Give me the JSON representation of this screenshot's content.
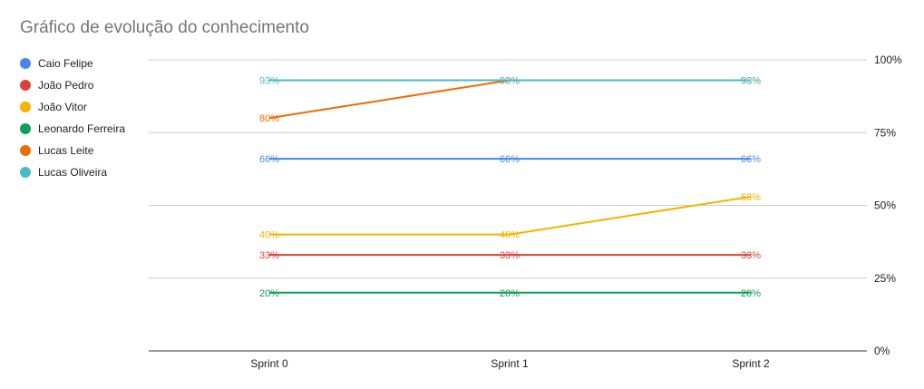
{
  "chart_data": {
    "type": "line",
    "title": "Gráfico de evolução do conhecimento",
    "categories": [
      "Sprint 0",
      "Sprint 1",
      "Sprint 2"
    ],
    "ylim": [
      0,
      100
    ],
    "yticks": [
      0,
      25,
      50,
      75,
      100
    ],
    "ytick_labels": [
      "0%",
      "25%",
      "50%",
      "75%",
      "100%"
    ],
    "y_axis_side": "right",
    "grid": true,
    "legend_position": "left",
    "series": [
      {
        "name": "Caio Felipe",
        "color": "#4a86e8",
        "values": [
          66,
          66,
          66
        ],
        "labels": [
          "66%",
          "66%",
          "66%"
        ]
      },
      {
        "name": "João Pedro",
        "color": "#db4437",
        "values": [
          33,
          33,
          33
        ],
        "labels": [
          "33%",
          "33%",
          "33%"
        ]
      },
      {
        "name": "João Vitor",
        "color": "#f4b400",
        "values": [
          40,
          40,
          53
        ],
        "labels": [
          "40%",
          "40%",
          "53%"
        ]
      },
      {
        "name": "Leonardo Ferreira",
        "color": "#0f9d58",
        "values": [
          20,
          20,
          20
        ],
        "labels": [
          "20%",
          "20%",
          "20%"
        ]
      },
      {
        "name": "Lucas Leite",
        "color": "#ef6c00",
        "values": [
          80,
          93,
          93
        ],
        "labels": [
          "80%",
          "93%",
          "93%"
        ]
      },
      {
        "name": "Lucas Oliveira",
        "color": "#46bdc6",
        "values": [
          93,
          93,
          93
        ],
        "labels": [
          "93%",
          "93%",
          "93%"
        ]
      }
    ]
  }
}
